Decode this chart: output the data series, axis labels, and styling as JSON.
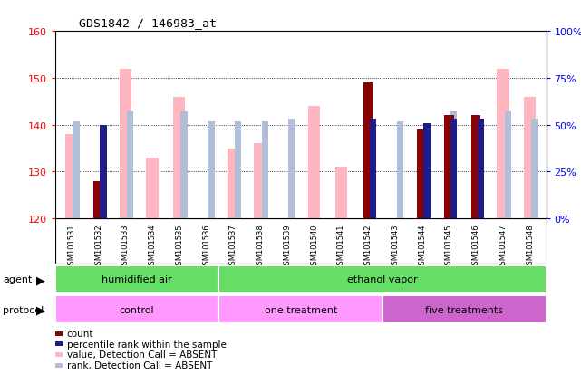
{
  "title": "GDS1842 / 146983_at",
  "samples": [
    "GSM101531",
    "GSM101532",
    "GSM101533",
    "GSM101534",
    "GSM101535",
    "GSM101536",
    "GSM101537",
    "GSM101538",
    "GSM101539",
    "GSM101540",
    "GSM101541",
    "GSM101542",
    "GSM101543",
    "GSM101544",
    "GSM101545",
    "GSM101546",
    "GSM101547",
    "GSM101548"
  ],
  "value_absent": [
    138,
    null,
    152,
    133,
    146,
    null,
    135,
    136,
    null,
    144,
    131,
    null,
    null,
    null,
    null,
    null,
    152,
    146
  ],
  "rank_absent_pct": [
    52,
    null,
    57,
    null,
    57,
    52,
    52,
    52,
    53,
    null,
    null,
    53,
    52,
    null,
    57,
    52,
    57,
    53
  ],
  "count": [
    null,
    128,
    null,
    null,
    null,
    null,
    null,
    null,
    null,
    null,
    null,
    149,
    null,
    139,
    142,
    142,
    null,
    null
  ],
  "percentile_pct": [
    null,
    50,
    null,
    null,
    null,
    null,
    null,
    null,
    null,
    null,
    null,
    53,
    null,
    51,
    53,
    53,
    null,
    null
  ],
  "ylim_left": [
    120,
    160
  ],
  "ylim_right": [
    0,
    100
  ],
  "yticks_left": [
    120,
    130,
    140,
    150,
    160
  ],
  "yticks_right": [
    0,
    25,
    50,
    75,
    100
  ],
  "ytick_labels_right": [
    "0%",
    "25%",
    "50%",
    "75%",
    "100%"
  ],
  "color_count": "#8B0000",
  "color_percentile": "#1C1C8C",
  "color_value_absent": "#FFB6C1",
  "color_rank_absent": "#B0BED8",
  "color_plot_bg": "#FFFFFF",
  "color_label_bg": "#C8C8C8",
  "color_agent_green": "#66DD66",
  "color_protocol_pink1": "#FF99FF",
  "color_protocol_pink2": "#CC66CC"
}
